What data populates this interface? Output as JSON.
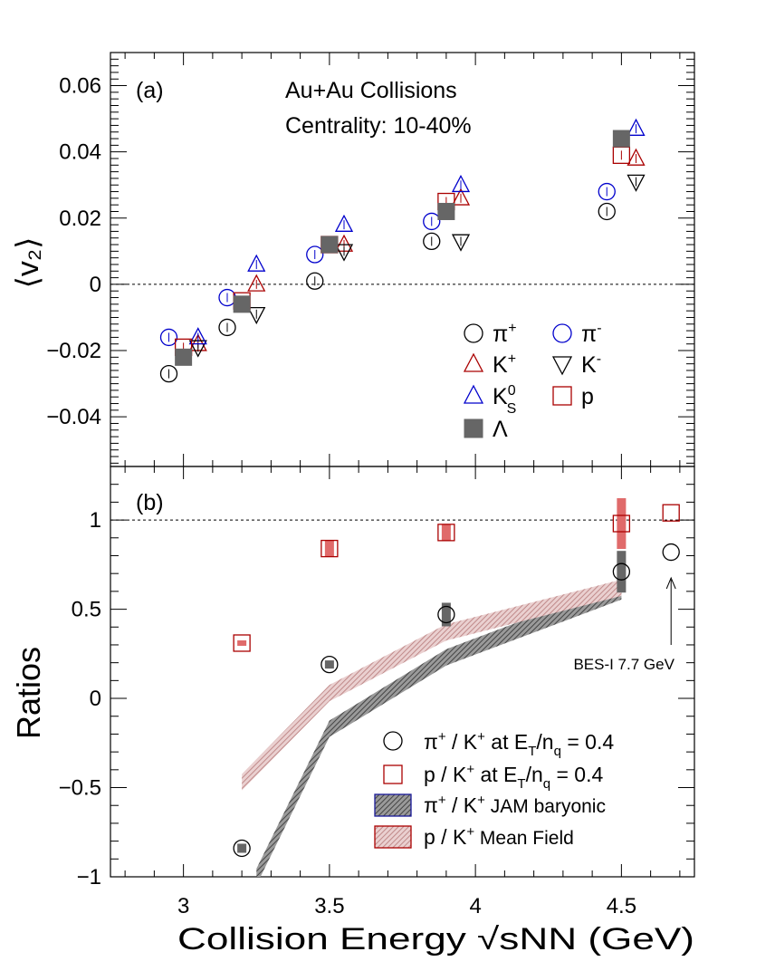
{
  "chart_data": [
    {
      "panel_label": "(a)",
      "type": "scatter",
      "annotations": [
        "Au+Au Collisions",
        "Centrality: 10-40%"
      ],
      "ylabel": "⟨v₂⟩",
      "xlim": [
        2.75,
        4.75
      ],
      "ylim": [
        -0.055,
        0.07
      ],
      "yticks": [
        "0.06",
        "0.04",
        "0.02",
        "0",
        "−0.02",
        "−0.04"
      ],
      "ytick_values": [
        0.06,
        0.04,
        0.02,
        0,
        -0.02,
        -0.04
      ],
      "reference_line": 0,
      "series": [
        {
          "name": "π⁺",
          "legend": "π+",
          "marker": "circle-open",
          "color": "#000000",
          "x": [
            2.95,
            3.15,
            3.45,
            3.85,
            4.45
          ],
          "y": [
            -0.027,
            -0.013,
            0.001,
            0.013,
            0.022
          ]
        },
        {
          "name": "π⁻",
          "legend": "π-",
          "marker": "circle-open",
          "color": "#0000cc",
          "x": [
            2.95,
            3.15,
            3.45,
            3.85,
            4.45
          ],
          "y": [
            -0.016,
            -0.004,
            0.009,
            0.019,
            0.028
          ]
        },
        {
          "name": "K⁺",
          "legend": "K+",
          "marker": "triangle-up-open",
          "color": "#aa0000",
          "x": [
            3.05,
            3.25,
            3.55,
            3.95,
            4.55
          ],
          "y": [
            -0.018,
            0.0,
            0.012,
            0.026,
            0.038
          ]
        },
        {
          "name": "K⁻",
          "legend": "K-",
          "marker": "triangle-down-open",
          "color": "#000000",
          "x": [
            3.05,
            3.25,
            3.55,
            3.95,
            4.55
          ],
          "y": [
            -0.019,
            -0.009,
            0.01,
            0.013,
            0.031
          ]
        },
        {
          "name": "K⁰S",
          "legend": "K0S",
          "marker": "triangle-up-open",
          "color": "#0000cc",
          "x": [
            3.05,
            3.25,
            3.55,
            3.95,
            4.55
          ],
          "y": [
            -0.016,
            0.006,
            0.018,
            0.03,
            0.047
          ]
        },
        {
          "name": "p",
          "legend": "p",
          "marker": "square-open",
          "color": "#aa0000",
          "x": [
            3.0,
            3.2,
            3.5,
            3.9,
            4.5
          ],
          "y": [
            -0.019,
            -0.005,
            0.012,
            0.025,
            0.039
          ]
        },
        {
          "name": "Λ",
          "legend": "Λ",
          "marker": "square-filled",
          "color": "#666666",
          "x": [
            3.0,
            3.2,
            3.5,
            3.9,
            4.5
          ],
          "y": [
            -0.022,
            -0.006,
            0.012,
            0.022,
            0.044
          ]
        }
      ]
    },
    {
      "panel_label": "(b)",
      "type": "scatter",
      "ylabel": "Ratios",
      "xlabel": "Collision Energy  √sNN (GeV)",
      "xlim": [
        2.75,
        4.75
      ],
      "ylim": [
        -1.0,
        1.3
      ],
      "xticks": [
        "3",
        "3.5",
        "4",
        "4.5"
      ],
      "xtick_values": [
        3,
        3.5,
        4,
        4.5
      ],
      "yticks": [
        "1",
        "0.5",
        "0",
        "−0.5",
        "−1"
      ],
      "ytick_values": [
        1,
        0.5,
        0,
        -0.5,
        -1
      ],
      "reference_line": 1,
      "series": [
        {
          "name": "π⁺ / K⁺ at E_T/n_q = 0.4",
          "marker": "circle-open",
          "color": "#000000",
          "x": [
            3.2,
            3.5,
            3.9,
            4.5
          ],
          "y": [
            -0.84,
            0.19,
            0.47,
            0.71
          ]
        },
        {
          "name": "p / K⁺ at E_T/n_q = 0.4",
          "marker": "square-open",
          "color": "#aa0000",
          "x": [
            3.2,
            3.5,
            3.9,
            4.5
          ],
          "y": [
            0.31,
            0.84,
            0.93,
            0.98
          ]
        },
        {
          "name": "π⁺ / K⁺ (BES-I 7.7 GeV)",
          "marker": "circle-open",
          "color": "#000000",
          "x": [
            4.67
          ],
          "y": [
            0.82
          ]
        },
        {
          "name": "p / K⁺ (BES-I 7.7 GeV)",
          "marker": "square-open",
          "color": "#aa0000",
          "x": [
            4.67
          ],
          "y": [
            1.04
          ]
        },
        {
          "name": "π⁺ / K⁺  JAM baryonic",
          "marker": "band",
          "color": "#555555",
          "x": [
            3.25,
            3.5,
            3.9,
            4.5
          ],
          "y": [
            -1.0,
            -0.17,
            0.23,
            0.6
          ]
        },
        {
          "name": "p / K⁺  Mean Field",
          "marker": "band",
          "color": "#cc8888",
          "x": [
            3.2,
            3.5,
            3.9,
            4.5
          ],
          "y": [
            -0.47,
            0.03,
            0.37,
            0.62
          ]
        }
      ],
      "annotation": "BES-I 7.7 GeV"
    }
  ]
}
